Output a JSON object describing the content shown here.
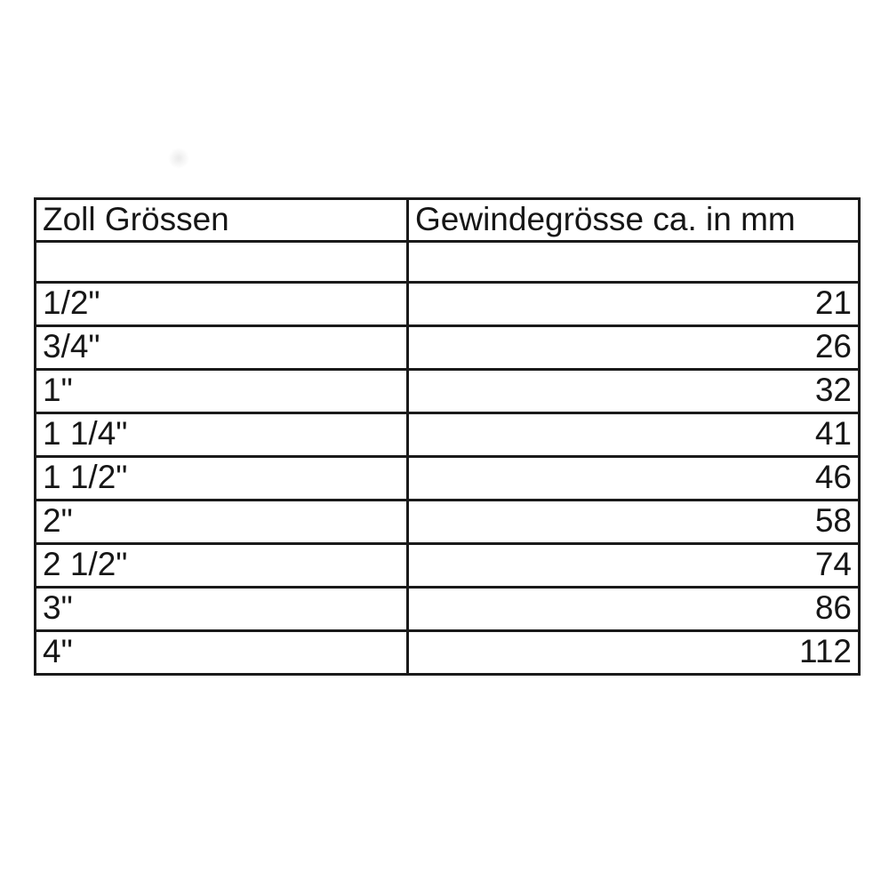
{
  "table": {
    "headers": {
      "zoll": "Zoll Grössen",
      "mm": "Gewindegrösse ca. in mm"
    },
    "rows": [
      {
        "zoll": "1/2\"",
        "mm": "21"
      },
      {
        "zoll": "3/4\"",
        "mm": "26"
      },
      {
        "zoll": "1\"",
        "mm": "32"
      },
      {
        "zoll": "1 1/4\"",
        "mm": "41"
      },
      {
        "zoll": "1 1/2\"",
        "mm": "46"
      },
      {
        "zoll": "2\"",
        "mm": "58"
      },
      {
        "zoll": "2 1/2\"",
        "mm": "74"
      },
      {
        "zoll": "3\"",
        "mm": "86"
      },
      {
        "zoll": "4\"",
        "mm": "112"
      }
    ],
    "border_color": "#1a1a1a",
    "background_color": "#ffffff",
    "text_color": "#161616"
  },
  "chart_data": {
    "type": "table",
    "columns": [
      "Zoll Grössen",
      "Gewindegrösse ca. in mm"
    ],
    "rows": [
      [
        "1/2\"",
        21
      ],
      [
        "3/4\"",
        26
      ],
      [
        "1\"",
        32
      ],
      [
        "1 1/4\"",
        41
      ],
      [
        "1 1/2\"",
        46
      ],
      [
        "2\"",
        58
      ],
      [
        "2 1/2\"",
        74
      ],
      [
        "3\"",
        86
      ],
      [
        "4\"",
        112
      ]
    ]
  }
}
